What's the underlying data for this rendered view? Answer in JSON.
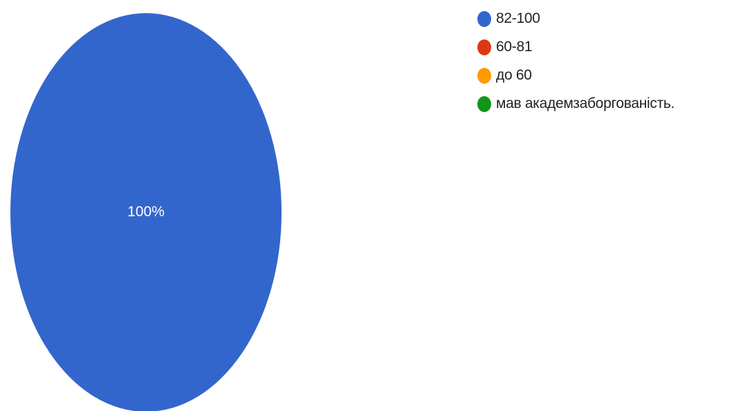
{
  "chart_data": {
    "type": "pie",
    "categories": [
      "82-100",
      "60-81",
      "до 60",
      "мав академзаборгованість."
    ],
    "values": [
      100,
      0,
      0,
      0
    ],
    "data_labels": [
      "100%"
    ],
    "colors": [
      "#3366cc",
      "#dc3912",
      "#ff9900",
      "#109618"
    ],
    "legend_position": "right"
  }
}
